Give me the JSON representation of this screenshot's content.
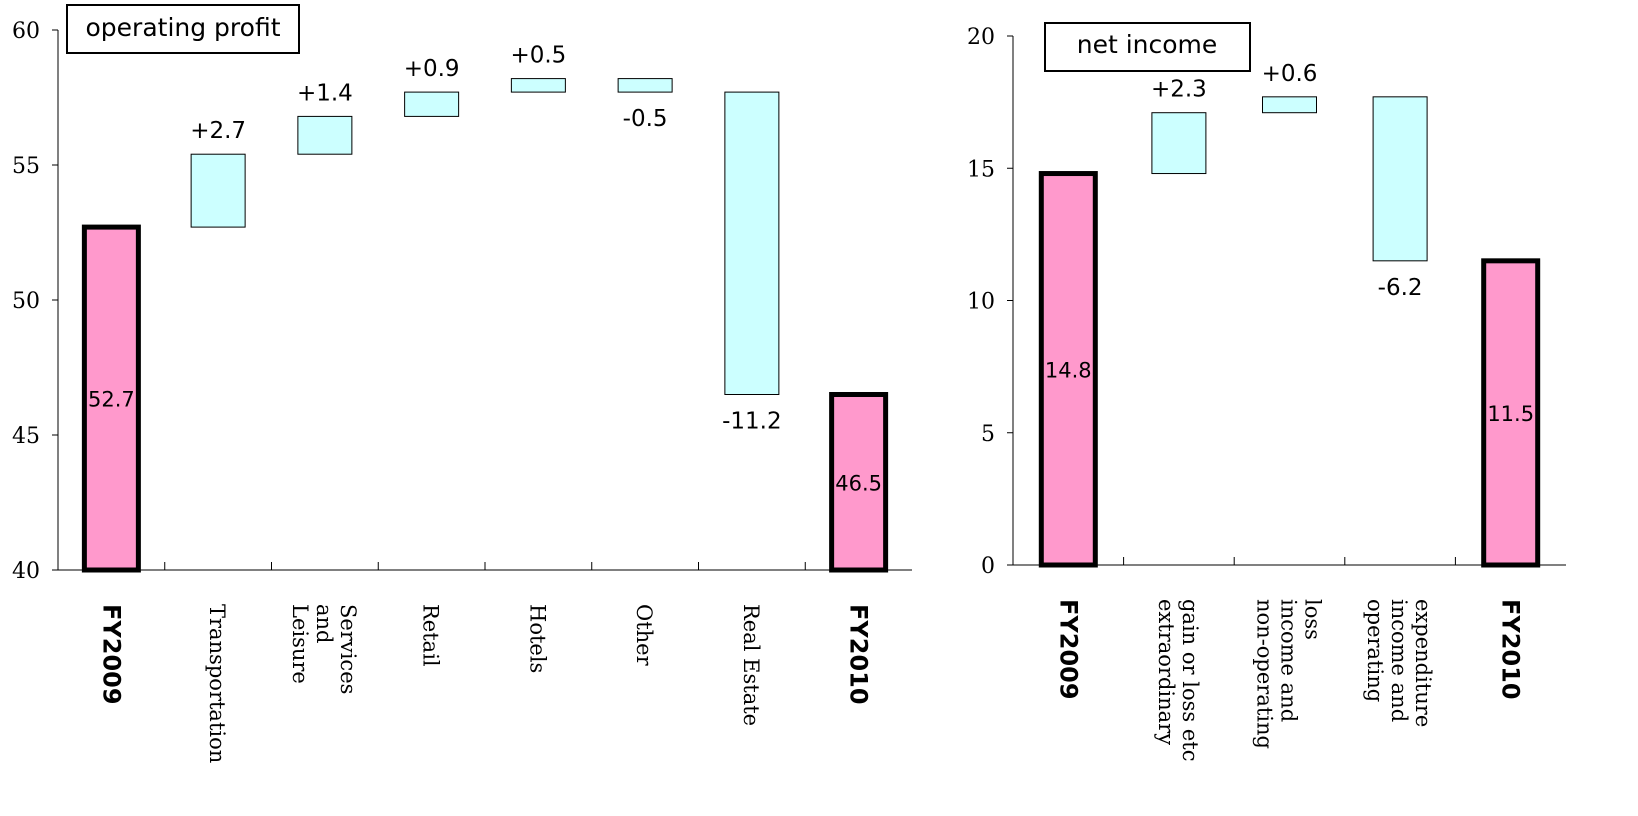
{
  "colors": {
    "endpoint_fill": "#ff99cc",
    "delta_fill": "#ccffff",
    "stroke": "#000000",
    "background": "#ffffff"
  },
  "chart_data": [
    {
      "type": "waterfall",
      "title": "operating profit",
      "xlabel": "",
      "ylabel": "",
      "ylim": [
        40,
        60
      ],
      "yticks": [
        40,
        45,
        50,
        55,
        60
      ],
      "grid": false,
      "legend": "none",
      "categories": [
        "FY2009",
        "Transportation",
        "Leisure and Services",
        "Retail",
        "Hotels",
        "Other",
        "Real Estate",
        "FY2010"
      ],
      "category_lines": [
        [
          "FY2009"
        ],
        [
          "Transportation"
        ],
        [
          "Leisure",
          "and",
          "Services"
        ],
        [
          "Retail"
        ],
        [
          "Hotels"
        ],
        [
          "Other"
        ],
        [
          "Real Estate"
        ],
        [
          "FY2010"
        ]
      ],
      "bars": [
        {
          "kind": "total",
          "value": 52.7,
          "label": "52.7"
        },
        {
          "kind": "delta",
          "value": 2.7,
          "label": "+2.7"
        },
        {
          "kind": "delta",
          "value": 1.4,
          "label": "+1.4"
        },
        {
          "kind": "delta",
          "value": 0.9,
          "label": "+0.9"
        },
        {
          "kind": "delta",
          "value": 0.5,
          "label": "+0.5"
        },
        {
          "kind": "delta",
          "value": -0.5,
          "label": "-0.5"
        },
        {
          "kind": "delta",
          "value": -11.2,
          "label": "-11.2"
        },
        {
          "kind": "total",
          "value": 46.5,
          "label": "46.5"
        }
      ]
    },
    {
      "type": "waterfall",
      "title": "net income",
      "xlabel": "",
      "ylabel": "",
      "ylim": [
        0,
        20
      ],
      "yticks": [
        0,
        5,
        10,
        15,
        20
      ],
      "grid": false,
      "legend": "none",
      "categories": [
        "FY2009",
        "extraordinary gain or loss etc",
        "non-operating income and loss",
        "operating income and expenditure",
        "FY2010"
      ],
      "category_lines": [
        [
          "FY2009"
        ],
        [
          "extraordinary",
          "gain or loss etc"
        ],
        [
          "non-operating",
          "income and",
          "loss"
        ],
        [
          "operating",
          "income and",
          "expenditure"
        ],
        [
          "FY2010"
        ]
      ],
      "bars": [
        {
          "kind": "total",
          "value": 14.8,
          "label": "14.8"
        },
        {
          "kind": "delta",
          "value": 2.3,
          "label": "+2.3"
        },
        {
          "kind": "delta",
          "value": 0.6,
          "label": "+0.6"
        },
        {
          "kind": "delta",
          "value": -6.2,
          "label": "-6.2"
        },
        {
          "kind": "total",
          "value": 11.5,
          "label": "11.5"
        }
      ]
    }
  ]
}
